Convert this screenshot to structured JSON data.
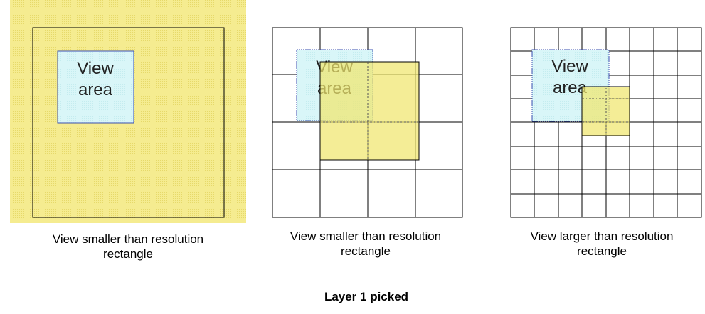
{
  "panels": [
    {
      "view_area_line1": "View",
      "view_area_line2": "area",
      "caption_line1": "View smaller than resolution",
      "caption_line2": "rectangle"
    },
    {
      "view_area_line1": "View",
      "view_area_line2": "area",
      "caption_line1": "View smaller than resolution",
      "caption_line2": "rectangle"
    },
    {
      "view_area_line1": "View",
      "view_area_line2": "area",
      "caption_line1": "View larger than resolution",
      "caption_line2": "rectangle"
    }
  ],
  "footer": {
    "caption": "Layer 1 picked"
  },
  "colors": {
    "layer_yellow": "#f5ec90",
    "view_area_fill": "#d9f6f8",
    "view_area_border": "#3a4fb0",
    "grid_line": "#000000"
  }
}
